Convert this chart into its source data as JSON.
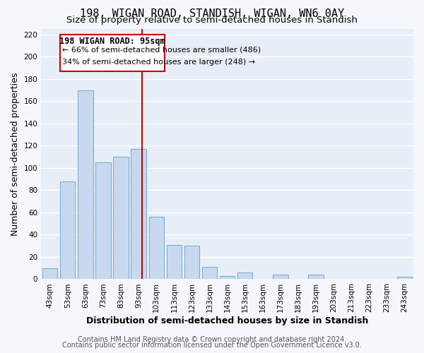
{
  "title": "198, WIGAN ROAD, STANDISH, WIGAN, WN6 0AY",
  "subtitle": "Size of property relative to semi-detached houses in Standish",
  "xlabel": "Distribution of semi-detached houses by size in Standish",
  "ylabel": "Number of semi-detached properties",
  "bin_labels": [
    "43sqm",
    "53sqm",
    "63sqm",
    "73sqm",
    "83sqm",
    "93sqm",
    "103sqm",
    "113sqm",
    "123sqm",
    "133sqm",
    "143sqm",
    "153sqm",
    "163sqm",
    "173sqm",
    "183sqm",
    "193sqm",
    "203sqm",
    "213sqm",
    "223sqm",
    "233sqm",
    "243sqm"
  ],
  "bar_heights": [
    10,
    88,
    170,
    105,
    110,
    117,
    56,
    31,
    30,
    11,
    3,
    6,
    0,
    4,
    0,
    4,
    0,
    0,
    0,
    0,
    2
  ],
  "bar_color": "#c8d9ef",
  "bar_edge_color": "#7aadd4",
  "property_line_color": "#cc0000",
  "annotation_title": "198 WIGAN ROAD: 95sqm",
  "annotation_line1": "← 66% of semi-detached houses are smaller (486)",
  "annotation_line2": "34% of semi-detached houses are larger (248) →",
  "annotation_box_color": "#ffffff",
  "annotation_box_edge": "#cc0000",
  "ylim": [
    0,
    225
  ],
  "yticks": [
    0,
    20,
    40,
    60,
    80,
    100,
    120,
    140,
    160,
    180,
    200,
    220
  ],
  "footer1": "Contains HM Land Registry data © Crown copyright and database right 2024.",
  "footer2": "Contains public sector information licensed under the Open Government Licence v3.0.",
  "plot_bg_color": "#e8eef7",
  "fig_bg_color": "#f5f7fc",
  "grid_color": "#ffffff",
  "title_fontsize": 11,
  "subtitle_fontsize": 9.5,
  "axis_label_fontsize": 9,
  "tick_fontsize": 7.5,
  "footer_fontsize": 7
}
